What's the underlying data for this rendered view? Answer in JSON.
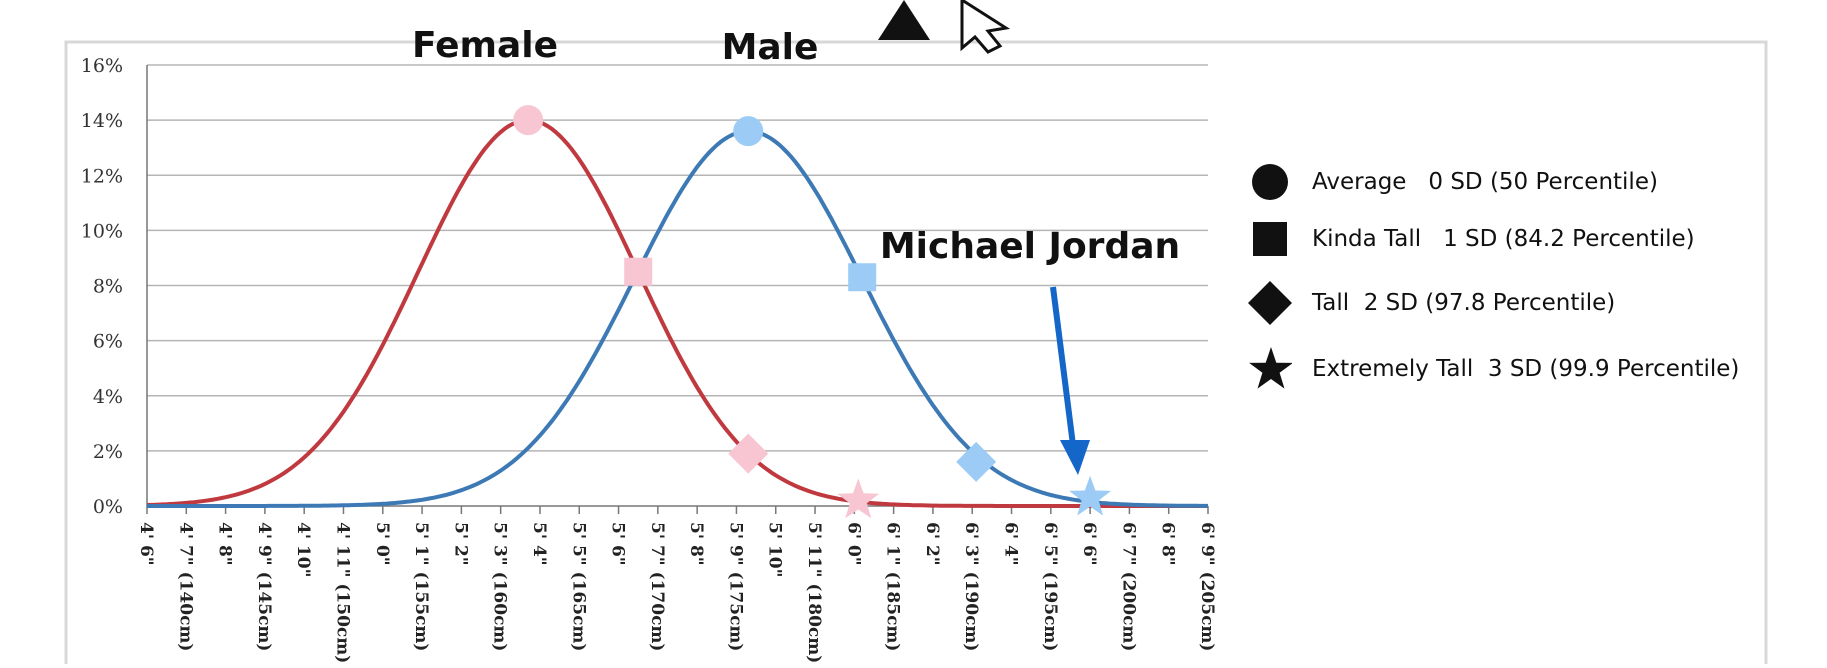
{
  "chart_data": {
    "type": "line",
    "x_ticks": [
      "4' 6\"",
      "4' 7\" (140cm)",
      "4' 8\"",
      "4' 9\" (145cm)",
      "4' 10\"",
      "4' 11\" (150cm)",
      "5' 0\"",
      "5' 1\" (155cm)",
      "5' 2\"",
      "5' 3\" (160cm)",
      "5' 4\"",
      "5' 5\" (165cm)",
      "5' 6\"",
      "5' 7\" (170cm)",
      "5' 8\"",
      "5' 9\" (175cm)",
      "5' 10\"",
      "5' 11\" (180cm)",
      "6' 0\"",
      "6' 1\" (185cm)",
      "6' 2\"",
      "6' 3\" (190cm)",
      "6' 4\"",
      "6' 5\" (195cm)",
      "6' 6\"",
      "6' 7\" (200cm)",
      "6' 8\"",
      "6' 9\" (205cm)"
    ],
    "x_range_inches": [
      54,
      81
    ],
    "y_ticks": [
      "0%",
      "2%",
      "4%",
      "6%",
      "8%",
      "10%",
      "12%",
      "14%",
      "16%"
    ],
    "ylim": [
      0,
      16
    ],
    "grid": true,
    "series": [
      {
        "name": "Female",
        "color": "#c0393f",
        "mean_inches": 63.7,
        "sd_inches": 2.8,
        "peak_percent": 14.0,
        "markers": [
          {
            "shape": "circle",
            "x": 63.7,
            "y": 14.0
          },
          {
            "shape": "square",
            "x": 66.5,
            "y": 8.5
          },
          {
            "shape": "diamond",
            "x": 69.3,
            "y": 1.9
          },
          {
            "shape": "star",
            "x": 72.1,
            "y": 0.2
          }
        ]
      },
      {
        "name": "Male",
        "color": "#3d7ab5",
        "mean_inches": 69.3,
        "sd_inches": 2.9,
        "peak_percent": 13.6,
        "markers": [
          {
            "shape": "circle",
            "x": 69.3,
            "y": 13.6
          },
          {
            "shape": "square",
            "x": 72.2,
            "y": 8.3
          },
          {
            "shape": "diamond",
            "x": 75.1,
            "y": 1.6
          },
          {
            "shape": "star",
            "x": 78.0,
            "y": 0.3
          }
        ]
      }
    ],
    "annotations": [
      {
        "text": "Michael Jordan",
        "points_to_x": 78.0,
        "points_to_y": 0.3,
        "arrow_color": "#1466c8"
      }
    ],
    "legend": {
      "placement": "right",
      "entries": [
        {
          "shape": "circle",
          "label": "Average   0 SD (50 Percentile)"
        },
        {
          "shape": "square",
          "label": "Kinda Tall   1 SD (84.2 Percentile)"
        },
        {
          "shape": "diamond",
          "label": "Tall  2 SD (97.8 Percentile)"
        },
        {
          "shape": "star",
          "label": "Extremely Tall  3 SD (99.9 Percentile)"
        }
      ]
    },
    "marker_colors": {
      "female": "#f7c6d2",
      "male": "#9ccbf5"
    }
  }
}
